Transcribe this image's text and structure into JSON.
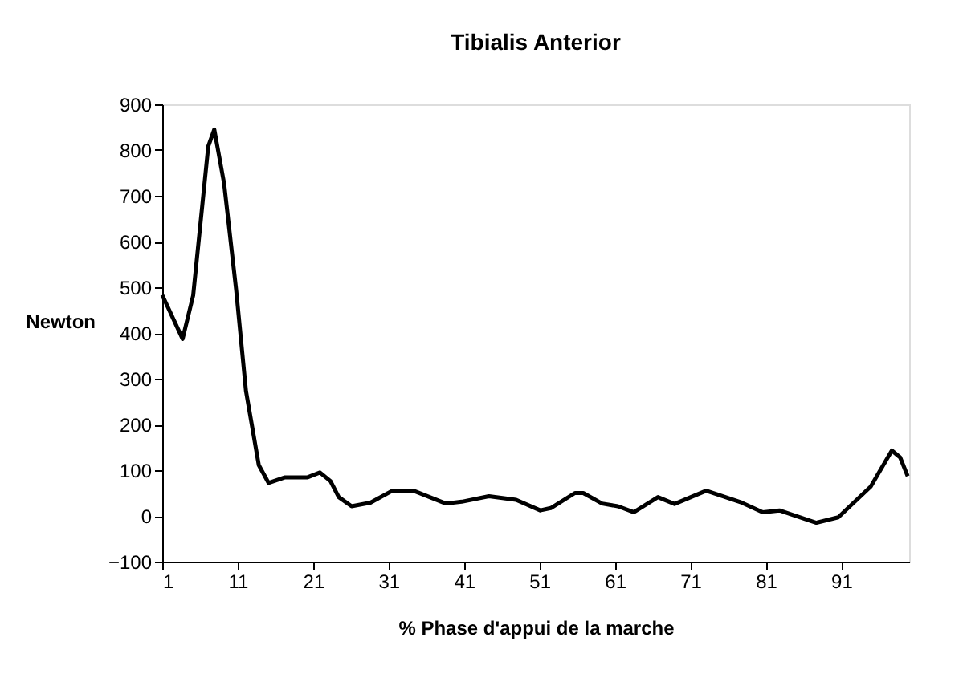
{
  "chart_data": {
    "type": "line",
    "title": "Tibialis Anterior",
    "xlabel": "% Phase d'appui de la marche",
    "ylabel": "Newton",
    "x": [
      1,
      3.7,
      5.1,
      7.1,
      7.9,
      9.2,
      10.8,
      12.1,
      13.8,
      15.1,
      17.2,
      20.2,
      21.9,
      23.3,
      24.4,
      26.1,
      28.6,
      31.5,
      34.3,
      38.6,
      40.7,
      44.3,
      47.9,
      51.1,
      52.5,
      55.7,
      56.8,
      59.3,
      61.4,
      63.5,
      66.7,
      68.9,
      73.1,
      77.8,
      80.6,
      82.8,
      87.7,
      90.6,
      94.9,
      97.7,
      98.8,
      99.8
    ],
    "series": [
      {
        "color": "#000000",
        "values": [
          483,
          387,
          482,
          808,
          845,
          727,
          494,
          273,
          111,
          72,
          84,
          84,
          95,
          76,
          41,
          21,
          29,
          55,
          55,
          27,
          31,
          43,
          35,
          12,
          17,
          50,
          50,
          27,
          21,
          8,
          41,
          26,
          55,
          29,
          8,
          12,
          -15,
          -3,
          64,
          143,
          128,
          87
        ]
      }
    ],
    "xlim": [
      1,
      100
    ],
    "xticks": [
      1,
      11,
      21,
      31,
      41,
      51,
      61,
      71,
      81,
      91
    ],
    "ylim": [
      -100,
      900
    ],
    "yticks": [
      -100,
      0,
      100,
      200,
      300,
      400,
      500,
      600,
      700,
      800,
      900
    ],
    "grid": false,
    "legend": false,
    "marker": "none",
    "line_style": "solid"
  }
}
